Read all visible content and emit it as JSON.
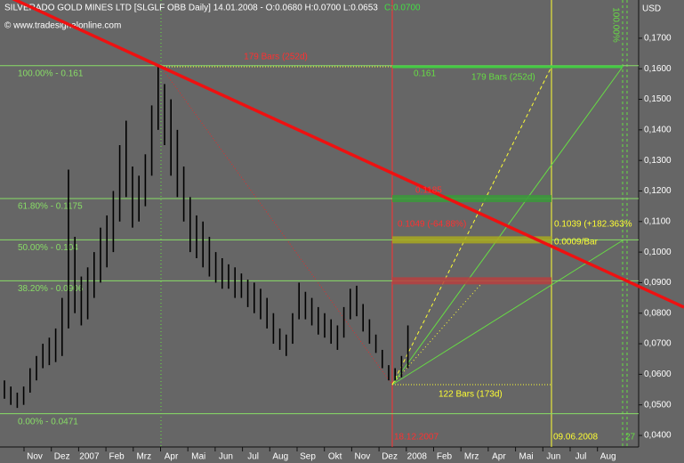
{
  "chart_data": {
    "type": "range-bar",
    "title": "SILVERADO GOLD MINES LTD [SLGLF OBB  Daily] 14.01.2008 - O:0.0680 H:0.0700 L:0.0653",
    "close_label": "C:0.0700",
    "source": "© www.tradesignalonline.com",
    "y_unit": "USD",
    "color": "#000000",
    "high": [
      0.058,
      0.056,
      0.054,
      0.056,
      0.062,
      0.066,
      0.07,
      0.072,
      0.075,
      0.085,
      0.127,
      0.105,
      0.092,
      0.095,
      0.1,
      0.108,
      0.112,
      0.12,
      0.135,
      0.143,
      0.128,
      0.125,
      0.132,
      0.148,
      0.161,
      0.155,
      0.15,
      0.14,
      0.128,
      0.118,
      0.112,
      0.11,
      0.105,
      0.1,
      0.098,
      0.096,
      0.095,
      0.093,
      0.091,
      0.09,
      0.088,
      0.085,
      0.08,
      0.075,
      0.073,
      0.08,
      0.09,
      0.087,
      0.085,
      0.082,
      0.08,
      0.078,
      0.076,
      0.082,
      0.088,
      0.089,
      0.083,
      0.078,
      0.073,
      0.068,
      0.063,
      0.062,
      0.066,
      0.076
    ],
    "low": [
      0.052,
      0.05,
      0.049,
      0.05,
      0.054,
      0.058,
      0.062,
      0.063,
      0.064,
      0.066,
      0.075,
      0.08,
      0.076,
      0.078,
      0.085,
      0.09,
      0.095,
      0.1,
      0.11,
      0.118,
      0.108,
      0.11,
      0.115,
      0.125,
      0.14,
      0.135,
      0.125,
      0.118,
      0.11,
      0.1,
      0.098,
      0.095,
      0.092,
      0.09,
      0.088,
      0.088,
      0.085,
      0.085,
      0.082,
      0.08,
      0.078,
      0.075,
      0.07,
      0.068,
      0.066,
      0.07,
      0.078,
      0.078,
      0.076,
      0.073,
      0.072,
      0.07,
      0.068,
      0.072,
      0.078,
      0.079,
      0.074,
      0.07,
      0.067,
      0.062,
      0.058,
      0.058,
      0.059,
      0.062
    ],
    "x_labels": [
      "Nov",
      "Dez",
      "2007",
      "Feb",
      "Mrz",
      "Apr",
      "Mai",
      "Jun",
      "Jul",
      "Aug",
      "Sep",
      "Okt",
      "Nov",
      "Dez",
      "2008",
      "Feb",
      "Mrz",
      "Apr",
      "Mai",
      "Jun",
      "Jul",
      "Aug"
    ],
    "ylim": [
      0.0368,
      0.1825
    ],
    "yticks": [
      {
        "value": 0.04,
        "label": "0,0400"
      },
      {
        "value": 0.05,
        "label": "0,0500"
      },
      {
        "value": 0.06,
        "label": "0,0600"
      },
      {
        "value": 0.07,
        "label": "0,0700"
      },
      {
        "value": 0.08,
        "label": "0,0800"
      },
      {
        "value": 0.09,
        "label": "0,0900"
      },
      {
        "value": 0.1,
        "label": "0,1000"
      },
      {
        "value": 0.11,
        "label": "0,1100"
      },
      {
        "value": 0.12,
        "label": "0,1200"
      },
      {
        "value": 0.13,
        "label": "0,1300"
      },
      {
        "value": 0.14,
        "label": "0,1400"
      },
      {
        "value": 0.15,
        "label": "0,1500"
      },
      {
        "value": 0.16,
        "label": "0,1600"
      },
      {
        "value": 0.17,
        "label": "0,1700"
      }
    ],
    "levels": [
      {
        "value": 0.161,
        "label": "100.00% - 0.161"
      },
      {
        "value": 0.1175,
        "label": "61.80% - 0.1175",
        "zone_color": "#3a9a3a"
      },
      {
        "value": 0.104,
        "label": "50.00% - 0.104",
        "zone_color": "#a8a820"
      },
      {
        "value": 0.0906,
        "label": "38.20% - 0.0906",
        "zone_color": "#b84040"
      },
      {
        "value": 0.0471,
        "label": "0.00% - 0.0471"
      }
    ],
    "annotations": [
      {
        "text": "179 Bars (252d)",
        "color": "#ff3030"
      },
      {
        "text": "0.161",
        "color": "#66dd44"
      },
      {
        "text": "179 Bars (252d)",
        "color": "#66dd44"
      },
      {
        "text": "0.1185",
        "color": "#ff3030"
      },
      {
        "text": "0.1049 (-64.88%)",
        "color": "#ff3030"
      },
      {
        "text": "0.1039 (+182.363%",
        "color": "#ffff33"
      },
      {
        "text": "0.0009/Bar",
        "color": "#ffff33"
      },
      {
        "text": "122 Bars (173d)",
        "color": "#ffff33"
      },
      {
        "text": "18.12.2007",
        "color": "#ff3030"
      },
      {
        "text": "09.06.2008",
        "color": "#ffff33"
      },
      {
        "text": "100.00%",
        "color": "#66dd44"
      },
      {
        "text": "27",
        "color": "#66dd44"
      }
    ]
  }
}
